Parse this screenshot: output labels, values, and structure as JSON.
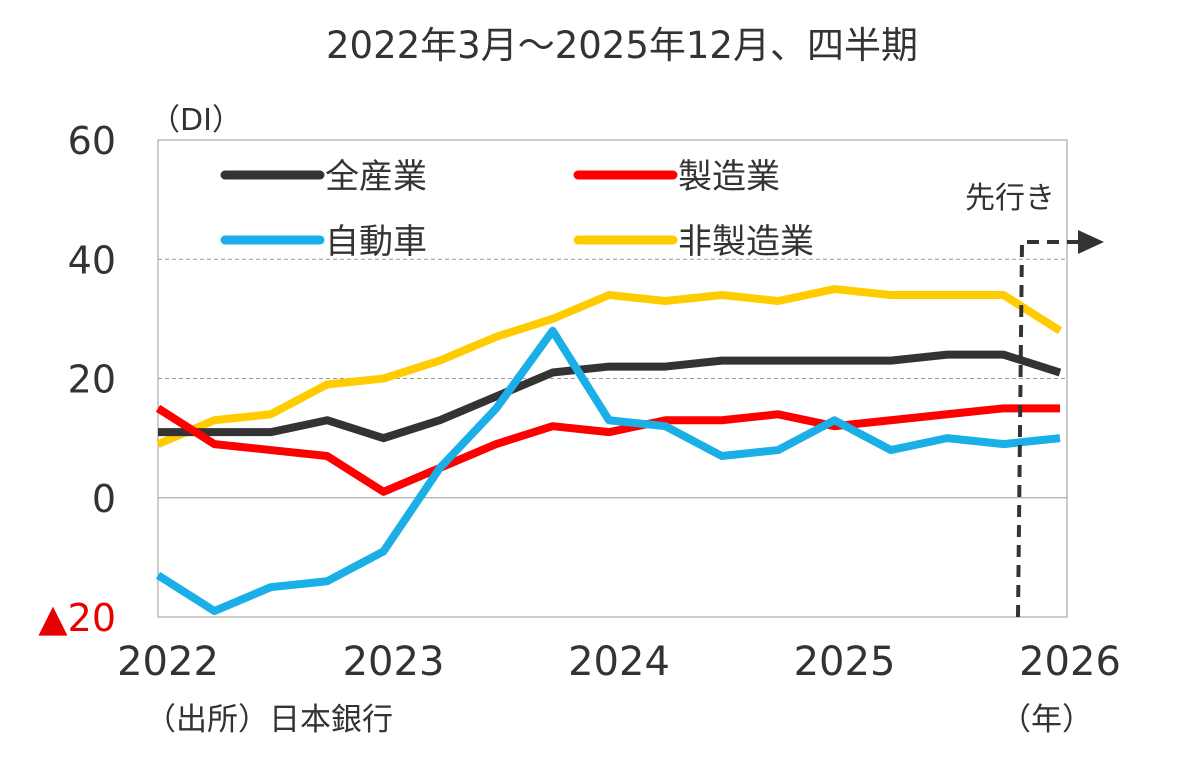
{
  "chart_data": {
    "type": "line",
    "title": "2022年3月～2025年12月、四半期",
    "ylabel": "（DI）",
    "xlabel": "（年）",
    "source": "（出所）日本銀行",
    "forecast_label": "先行き",
    "ylim": [
      -20,
      60
    ],
    "yticks": [
      {
        "value": 60,
        "label": "60",
        "color": "#333333"
      },
      {
        "value": 40,
        "label": "40",
        "color": "#333333"
      },
      {
        "value": 20,
        "label": "20",
        "color": "#333333"
      },
      {
        "value": 0,
        "label": "0",
        "color": "#333333"
      },
      {
        "value": -20,
        "label": "▲20",
        "color": "#e60000"
      }
    ],
    "xticks": [
      "2022",
      "2023",
      "2024",
      "2025",
      "2026"
    ],
    "grid": "horizontal dashed at 20 and 40",
    "legend_position": "top-left",
    "series": [
      {
        "name": "全産業",
        "color": "#333333",
        "values": [
          11,
          11,
          11,
          13,
          10,
          13,
          17,
          21,
          22,
          22,
          23,
          23,
          23,
          23,
          24,
          24,
          21
        ]
      },
      {
        "name": "製造業",
        "color": "#ff0000",
        "values": [
          15,
          9,
          8,
          7,
          1,
          5,
          9,
          12,
          11,
          13,
          13,
          14,
          12,
          13,
          14,
          15,
          15
        ]
      },
      {
        "name": "自動車",
        "color": "#1aafe6",
        "values": [
          -13,
          -19,
          -15,
          -14,
          -9,
          5,
          15,
          28,
          13,
          12,
          7,
          8,
          13,
          8,
          10,
          9,
          10
        ]
      },
      {
        "name": "非製造業",
        "color": "#ffcc00",
        "values": [
          9,
          13,
          14,
          19,
          20,
          23,
          27,
          30,
          34,
          33,
          34,
          33,
          35,
          34,
          34,
          34,
          28
        ]
      }
    ]
  }
}
